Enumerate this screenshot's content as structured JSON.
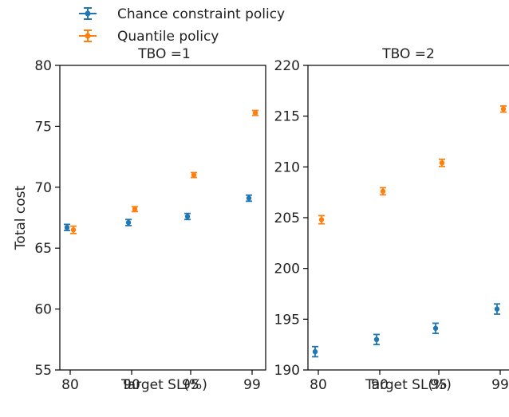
{
  "legend": [
    {
      "name": "Chance constraint policy",
      "color": "#1f77b4"
    },
    {
      "name": "Quantile policy",
      "color": "#ff7f0e"
    }
  ],
  "chart_data": [
    {
      "type": "scatter",
      "title": "TBO =1",
      "xlabel": "Target SL(%)",
      "ylabel": "Total cost",
      "categories": [
        "80",
        "90",
        "95",
        "99"
      ],
      "ylim": [
        55,
        80
      ],
      "yticks": [
        "55",
        "60",
        "65",
        "70",
        "75",
        "80"
      ],
      "series": [
        {
          "name": "Chance constraint policy",
          "color": "#1f77b4",
          "values": [
            66.7,
            67.1,
            67.6,
            69.1
          ],
          "errors": [
            0.25,
            0.25,
            0.25,
            0.25
          ]
        },
        {
          "name": "Quantile policy",
          "color": "#ff7f0e",
          "values": [
            66.5,
            68.2,
            71.0,
            76.1
          ],
          "errors": [
            0.3,
            0.2,
            0.2,
            0.2
          ]
        }
      ]
    },
    {
      "type": "scatter",
      "title": "TBO =2",
      "xlabel": "Target SL(%)",
      "ylabel": "",
      "categories": [
        "80",
        "90",
        "95",
        "99"
      ],
      "ylim": [
        190,
        220
      ],
      "yticks": [
        "190",
        "195",
        "200",
        "205",
        "210",
        "215",
        "220"
      ],
      "series": [
        {
          "name": "Chance constraint policy",
          "color": "#1f77b4",
          "values": [
            191.8,
            193.0,
            194.1,
            196.0
          ],
          "errors": [
            0.5,
            0.5,
            0.5,
            0.5
          ]
        },
        {
          "name": "Quantile policy",
          "color": "#ff7f0e",
          "values": [
            204.8,
            207.6,
            210.4,
            215.7
          ],
          "errors": [
            0.4,
            0.35,
            0.35,
            0.3
          ]
        }
      ]
    }
  ]
}
